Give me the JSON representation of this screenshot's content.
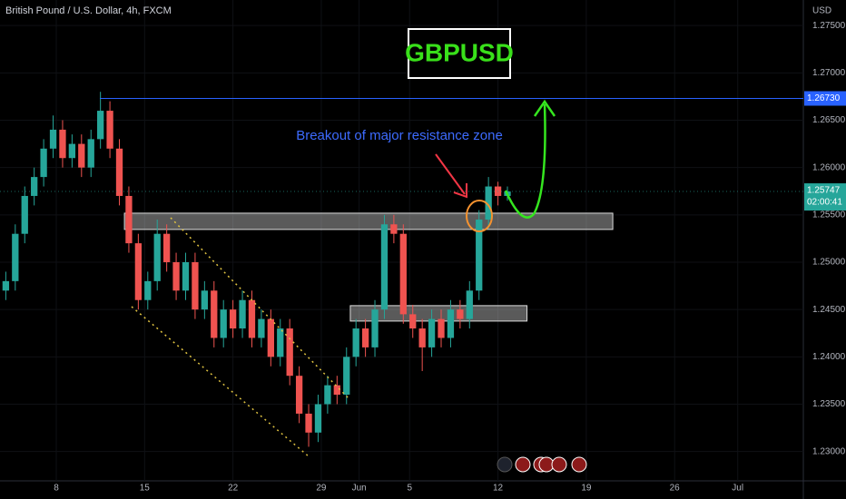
{
  "chart_data": {
    "type": "candlestick",
    "title": "British Pound / U.S. Dollar, 4h, FXCM",
    "currency": "USD",
    "symbol": "GBPUSD",
    "annotation": "Breakout of major resistance zone",
    "up_color": "#26a69a",
    "down_color": "#ef5350",
    "candles": {
      "x": [
        4,
        4.75,
        5.5,
        6.25,
        7,
        7.75,
        8.5,
        9.25,
        10,
        10.75,
        11.5,
        12.25,
        13,
        13.75,
        14.5,
        15.25,
        16,
        16.75,
        17.5,
        18.25,
        19,
        19.75,
        20.5,
        21.25,
        22,
        22.75,
        23.5,
        24.25,
        25,
        25.75,
        26.5,
        27.25,
        28,
        28.75,
        29.5,
        30.25,
        31,
        31.75,
        32.5,
        33.25,
        34,
        34.75,
        35.5,
        36.25,
        37,
        37.75,
        38.5,
        39.25,
        40,
        40.75,
        41.5,
        42.25,
        43,
        43.75
      ],
      "open": [
        1.247,
        1.248,
        1.253,
        1.257,
        1.259,
        1.262,
        1.264,
        1.261,
        1.2625,
        1.26,
        1.263,
        1.266,
        1.262,
        1.257,
        1.252,
        1.246,
        1.248,
        1.253,
        1.25,
        1.247,
        1.25,
        1.245,
        1.247,
        1.242,
        1.245,
        1.243,
        1.246,
        1.242,
        1.244,
        1.24,
        1.243,
        1.238,
        1.234,
        1.232,
        1.235,
        1.237,
        1.236,
        1.24,
        1.243,
        1.241,
        1.245,
        1.254,
        1.253,
        1.2445,
        1.243,
        1.241,
        1.244,
        1.242,
        1.245,
        1.244,
        1.247,
        1.2545,
        1.258,
        1.257
      ],
      "high": [
        1.249,
        1.254,
        1.258,
        1.26,
        1.263,
        1.2655,
        1.265,
        1.2635,
        1.2635,
        1.264,
        1.268,
        1.267,
        1.263,
        1.258,
        1.253,
        1.249,
        1.2545,
        1.254,
        1.251,
        1.251,
        1.251,
        1.248,
        1.248,
        1.246,
        1.246,
        1.247,
        1.247,
        1.245,
        1.245,
        1.244,
        1.244,
        1.239,
        1.235,
        1.236,
        1.238,
        1.238,
        1.241,
        1.244,
        1.244,
        1.246,
        1.255,
        1.255,
        1.254,
        1.2455,
        1.244,
        1.245,
        1.245,
        1.246,
        1.246,
        1.248,
        1.2555,
        1.259,
        1.2585,
        1.258
      ],
      "low": [
        1.246,
        1.247,
        1.252,
        1.256,
        1.258,
        1.261,
        1.26,
        1.26,
        1.259,
        1.259,
        1.262,
        1.261,
        1.256,
        1.251,
        1.245,
        1.245,
        1.247,
        1.249,
        1.246,
        1.246,
        1.244,
        1.244,
        1.241,
        1.241,
        1.242,
        1.242,
        1.241,
        1.241,
        1.239,
        1.239,
        1.237,
        1.233,
        1.2305,
        1.231,
        1.234,
        1.235,
        1.235,
        1.239,
        1.24,
        1.24,
        1.244,
        1.252,
        1.2435,
        1.242,
        1.2385,
        1.24,
        1.241,
        1.241,
        1.243,
        1.243,
        1.246,
        1.2535,
        1.256,
        1.2565
      ],
      "close": [
        1.248,
        1.253,
        1.257,
        1.259,
        1.262,
        1.264,
        1.261,
        1.2625,
        1.26,
        1.263,
        1.266,
        1.262,
        1.257,
        1.252,
        1.246,
        1.248,
        1.253,
        1.25,
        1.247,
        1.25,
        1.245,
        1.247,
        1.242,
        1.245,
        1.243,
        1.246,
        1.242,
        1.244,
        1.24,
        1.243,
        1.238,
        1.234,
        1.232,
        1.235,
        1.237,
        1.236,
        1.24,
        1.243,
        1.241,
        1.245,
        1.254,
        1.253,
        1.2445,
        1.243,
        1.241,
        1.244,
        1.242,
        1.245,
        1.244,
        1.247,
        1.2545,
        1.258,
        1.257,
        1.25747
      ]
    },
    "countdown": "02:00:41",
    "price_line": {
      "value": 1.2673,
      "label": "1.26730",
      "x0": 11.45,
      "color": "#2962ff"
    },
    "zones": [
      {
        "top": 1.25518,
        "bottom": 1.25346,
        "x0": 13.4,
        "x1": 52.1
      },
      {
        "top": 1.24541,
        "bottom": 1.24378,
        "x0": 31.3,
        "x1": 45.3
      }
    ],
    "xlim": [
      3.54,
      67.2
    ],
    "ylim": [
      1.2269,
      1.2777
    ],
    "xticks": [
      8,
      15,
      22,
      29,
      {
        "value": 32,
        "label": "Jun"
      },
      {
        "value": 36,
        "label": "5"
      },
      {
        "value": 43,
        "label": "12"
      },
      {
        "value": 50,
        "label": "19"
      },
      {
        "value": 57,
        "label": "26"
      },
      {
        "value": 62,
        "label": "Jul"
      }
    ],
    "yticks": [
      {
        "value": 1.275,
        "label": "1.27500"
      },
      {
        "value": 1.27,
        "label": "1.27000"
      },
      {
        "value": 1.265,
        "label": "1.26500"
      },
      {
        "value": 1.26,
        "label": "1.26000"
      },
      {
        "value": 1.255,
        "label": "1.25500"
      },
      {
        "value": 1.25,
        "label": "1.25000"
      },
      {
        "value": 1.245,
        "label": "1.24500"
      },
      {
        "value": 1.24,
        "label": "1.24000"
      },
      {
        "value": 1.235,
        "label": "1.23500"
      },
      {
        "value": 1.23,
        "label": "1.23000"
      }
    ]
  }
}
